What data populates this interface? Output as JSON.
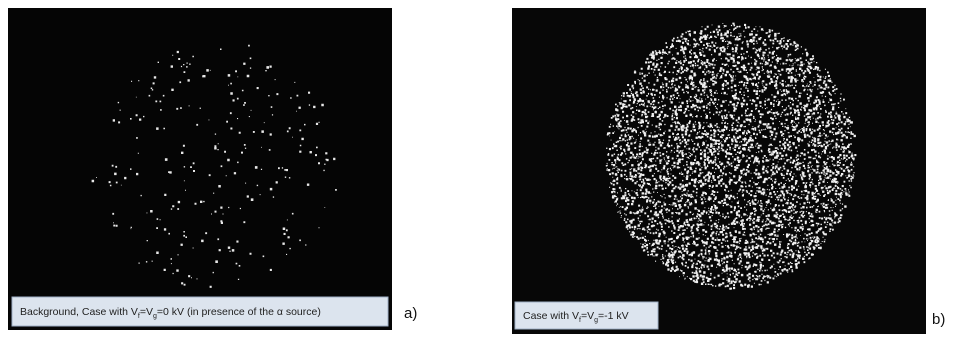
{
  "panels": [
    {
      "caption": [
        "Background, Case with V",
        "f",
        "=V",
        "g",
        "=0  kV (in presence of the α  source)"
      ],
      "label": "a)"
    },
    {
      "caption": [
        "Case with V",
        "f",
        "=V",
        "g",
        "=-1  kV"
      ],
      "label": "b)"
    }
  ]
}
